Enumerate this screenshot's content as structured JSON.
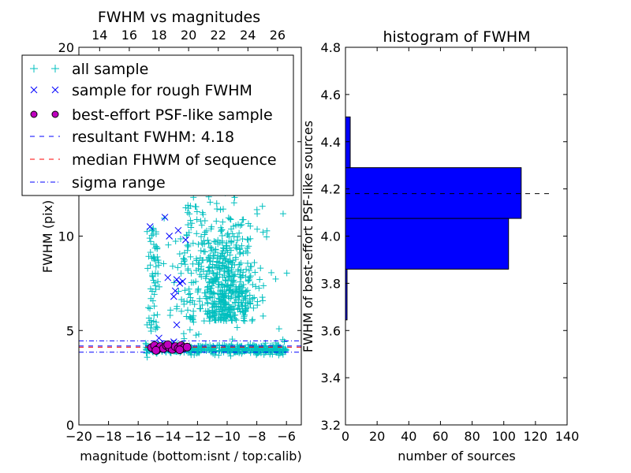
{
  "chart_data": [
    {
      "type": "scatter",
      "title": "FWHM vs magnitudes",
      "xlabel": "magnitude (bottom:isnt / top:calib)",
      "ylabel": "FWHM (pix)",
      "xlim": [
        -20,
        -5
      ],
      "ylim": [
        0,
        20
      ],
      "x_ticks": [
        -20,
        -18,
        -16,
        -14,
        -12,
        -10,
        -8,
        -6
      ],
      "x_tick_labels": [
        "−20",
        "−18",
        "−16",
        "−14",
        "−12",
        "−10",
        "−8",
        "−6"
      ],
      "y_ticks": [
        0,
        5,
        10,
        15,
        20
      ],
      "y_tick_labels": [
        "0",
        "5",
        "10",
        "15",
        "20"
      ],
      "top_axis_ticks": [
        14,
        16,
        18,
        20,
        22,
        24,
        26
      ],
      "top_axis_offset": 32.6,
      "legend_position": "upper-left",
      "legend": [
        {
          "label": "all sample",
          "marker": "plus",
          "color": "#00bfbf"
        },
        {
          "label": "sample for rough FWHM",
          "marker": "x",
          "color": "#0000ff"
        },
        {
          "label": "best-effort PSF-like sample",
          "marker": "circle",
          "color": "#bf00bf"
        },
        {
          "label": "resultant FWHM: 4.18",
          "marker": "dashed-line",
          "color": "#0000ff"
        },
        {
          "label": "median FHWM of sequence",
          "marker": "dashed-line",
          "color": "#ff0000"
        },
        {
          "label": "sigma range",
          "marker": "dashdot-line",
          "color": "#0000ff"
        }
      ],
      "series": [
        {
          "name": "sample for rough FWHM",
          "marker": "x",
          "color": "#0000ff",
          "points": [
            [
              -15.2,
              10.5
            ],
            [
              -14.2,
              11.0
            ],
            [
              -13.9,
              10.0
            ],
            [
              -13.3,
              10.3
            ],
            [
              -12.8,
              9.8
            ],
            [
              -14.0,
              7.8
            ],
            [
              -13.4,
              7.7
            ],
            [
              -13.2,
              7.5
            ],
            [
              -13.0,
              7.6
            ],
            [
              -13.5,
              7.1
            ],
            [
              -13.6,
              6.8
            ],
            [
              -13.4,
              5.3
            ],
            [
              -14.6,
              4.6
            ],
            [
              -14.5,
              4.3
            ],
            [
              -13.8,
              4.2
            ],
            [
              -13.6,
              4.4
            ],
            [
              -13.1,
              4.1
            ],
            [
              -14.9,
              4.0
            ],
            [
              -14.4,
              3.95
            ],
            [
              -13.5,
              3.98
            ]
          ]
        },
        {
          "name": "best-effort PSF-like sample",
          "marker": "circle",
          "color": "#bf00bf",
          "points": [
            [
              -15.1,
              4.1
            ],
            [
              -14.9,
              4.2
            ],
            [
              -14.7,
              4.0
            ],
            [
              -14.5,
              4.15
            ],
            [
              -14.3,
              4.05
            ],
            [
              -14.1,
              4.2
            ],
            [
              -13.9,
              4.1
            ],
            [
              -13.7,
              4.0
            ],
            [
              -13.5,
              4.15
            ],
            [
              -13.3,
              4.05
            ],
            [
              -13.1,
              4.2
            ],
            [
              -12.9,
              4.1
            ],
            [
              -14.8,
              3.95
            ],
            [
              -14.0,
              4.25
            ],
            [
              -13.2,
              3.98
            ],
            [
              -12.7,
              4.12
            ]
          ]
        }
      ],
      "hlines": [
        {
          "name": "resultant FWHM: 4.18",
          "y": 4.18,
          "style": "dashed",
          "color": "#0000ff"
        },
        {
          "name": "median FHWM of sequence",
          "y": 4.12,
          "style": "dashed",
          "color": "#ff0000"
        },
        {
          "name": "sigma range",
          "y": 4.45,
          "style": "dashdot",
          "color": "#0000ff"
        },
        {
          "name": "sigma range",
          "y": 3.85,
          "style": "dashdot",
          "color": "#0000ff"
        }
      ]
    },
    {
      "type": "bar",
      "orientation": "horizontal",
      "title": "histogram of FWHM",
      "xlabel": "number of sources",
      "ylabel": "FWHM of best-effort PSF-like sources",
      "xlim": [
        0,
        140
      ],
      "ylim": [
        3.2,
        4.8
      ],
      "x_ticks": [
        0,
        20,
        40,
        60,
        80,
        100,
        120,
        140
      ],
      "x_tick_labels": [
        "0",
        "20",
        "40",
        "60",
        "80",
        "100",
        "120",
        "140"
      ],
      "y_ticks": [
        3.2,
        3.4,
        3.6,
        3.8,
        4.0,
        4.2,
        4.4,
        4.6,
        4.8
      ],
      "y_tick_labels": [
        "3.2",
        "3.4",
        "3.6",
        "3.8",
        "4.0",
        "4.2",
        "4.4",
        "4.6",
        "4.8"
      ],
      "bars": [
        {
          "y0": 3.645,
          "y1": 3.86,
          "count": 1
        },
        {
          "y0": 3.86,
          "y1": 4.075,
          "count": 103
        },
        {
          "y0": 4.075,
          "y1": 4.29,
          "count": 111
        },
        {
          "y0": 4.29,
          "y1": 4.505,
          "count": 3
        }
      ],
      "bar_color": "#0000ff",
      "hline": {
        "y": 4.18,
        "style": "dashed",
        "color": "#000000",
        "x_end": 130
      }
    }
  ]
}
